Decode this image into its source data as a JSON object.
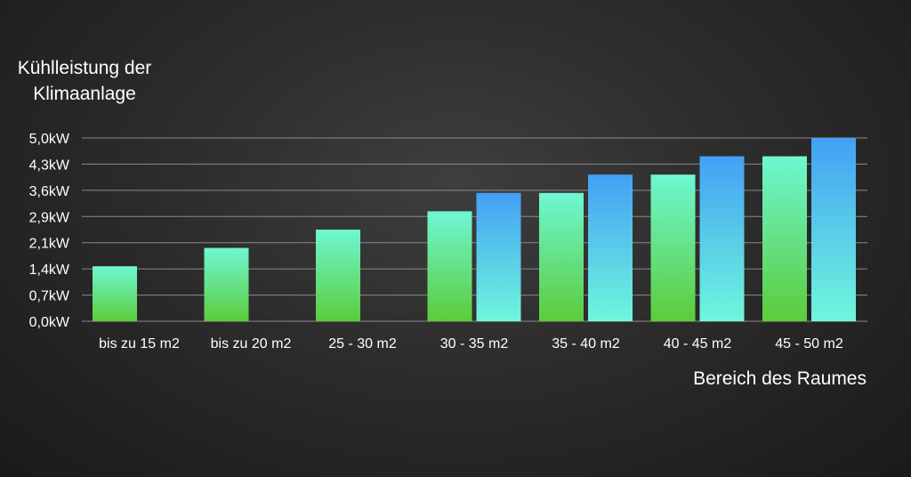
{
  "chart_data": {
    "type": "bar",
    "ylabel_lines": [
      "Kühlleistung der",
      "Klimaanlage"
    ],
    "xlabel": "Bereich des Raumes",
    "categories": [
      "bis zu 15 m2",
      "bis zu 20 m2",
      "25 - 30 m2",
      "30 - 35 m2",
      "35 - 40 m2",
      "40 - 45 m2",
      "45 - 50 m2"
    ],
    "yticks": [
      "5,0kW",
      "4,3kW",
      "3,6kW",
      "2,9kW",
      "2,1kW",
      "1,4kW",
      "0,7kW",
      "0,0kW"
    ],
    "ylim": [
      0,
      5.0
    ],
    "grid": true,
    "series": [
      {
        "values": [
          1.5,
          2.0,
          2.5,
          3.0,
          3.5,
          4.0,
          4.5
        ],
        "colors": [
          "#6ef7d3",
          "#5ccc3a"
        ]
      },
      {
        "values": [
          null,
          null,
          null,
          3.5,
          4.0,
          4.5,
          5.0
        ],
        "colors": [
          "#43a0f5",
          "#6ff7dc"
        ]
      }
    ]
  }
}
